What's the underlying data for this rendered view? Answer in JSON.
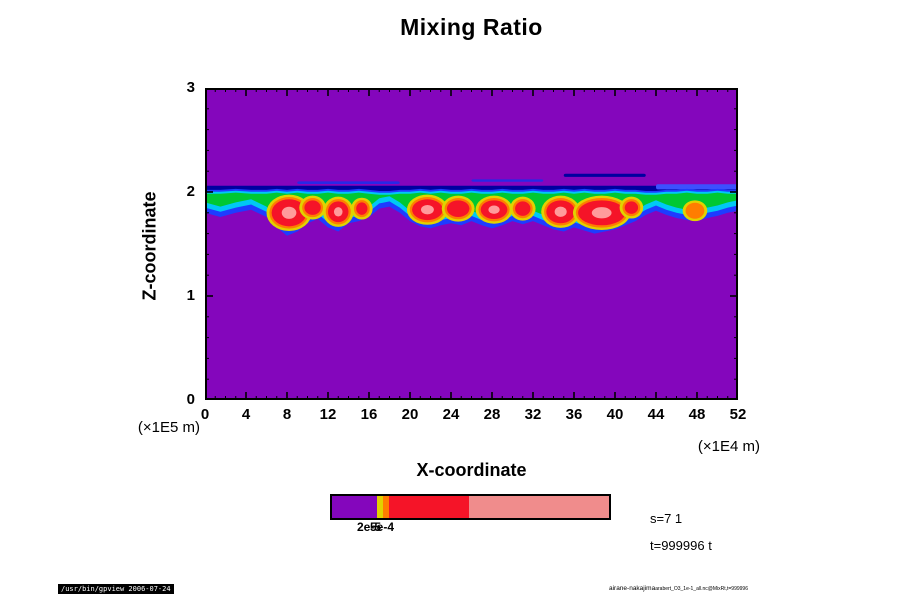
{
  "title": "Mixing Ratio",
  "chart_data": {
    "type": "heatmap",
    "title": "Mixing Ratio",
    "xlabel": "X-coordinate",
    "ylabel": "Z-coordinate",
    "x_unit": "(×1E4 m)",
    "y_unit": "(×1E5 m)",
    "xlim": [
      0,
      52
    ],
    "ylim": [
      0,
      3
    ],
    "x_ticks": [
      0,
      4,
      8,
      12,
      16,
      20,
      24,
      28,
      32,
      36,
      40,
      44,
      48,
      52
    ],
    "y_ticks": [
      0,
      1,
      2,
      3
    ],
    "description": "Filled-contour mixing-ratio cross-section: uniform low-value (purple) background with a thin cloud layer between z≈1.6 and z≈2.05 (×1E5 m) spanning all x, edged in blue/cyan/green with high-value yellow/orange/red cores and pale-pink maxima",
    "colors": {
      "background": "#8406BC",
      "navy": "#0000A0",
      "blue": "#1E3CFF",
      "cyan": "#00C8F5",
      "green": "#00C832",
      "yellow": "#E1D200",
      "orange": "#FF7D00",
      "red": "#F51428",
      "pink": "#FF9B9B"
    },
    "band_points": [
      [
        0,
        2.02,
        1.8
      ],
      [
        1.5,
        2.02,
        1.76
      ],
      [
        3,
        2.03,
        1.8
      ],
      [
        4.5,
        2.02,
        1.83
      ],
      [
        6,
        2.02,
        1.76
      ],
      [
        7,
        2.03,
        1.66
      ],
      [
        8,
        2.02,
        1.58
      ],
      [
        9,
        2.03,
        1.62
      ],
      [
        10,
        2.02,
        1.7
      ],
      [
        11,
        2.02,
        1.74
      ],
      [
        12,
        2.03,
        1.66
      ],
      [
        13,
        2.02,
        1.62
      ],
      [
        14,
        2.02,
        1.7
      ],
      [
        15,
        2.03,
        1.72
      ],
      [
        16,
        2.02,
        1.76
      ],
      [
        17,
        2.01,
        1.84
      ],
      [
        18,
        2.01,
        1.86
      ],
      [
        19,
        2.02,
        1.8
      ],
      [
        20,
        2.02,
        1.72
      ],
      [
        21,
        2.03,
        1.67
      ],
      [
        22,
        2.02,
        1.65
      ],
      [
        23,
        2.03,
        1.68
      ],
      [
        24,
        2.02,
        1.7
      ],
      [
        25,
        2.02,
        1.68
      ],
      [
        26,
        2.03,
        1.72
      ],
      [
        27,
        2.02,
        1.68
      ],
      [
        28,
        2.02,
        1.65
      ],
      [
        29,
        2.03,
        1.68
      ],
      [
        30,
        2.02,
        1.72
      ],
      [
        31,
        2.02,
        1.69
      ],
      [
        32,
        2.03,
        1.72
      ],
      [
        33,
        2.02,
        1.68
      ],
      [
        34,
        2.02,
        1.64
      ],
      [
        35,
        2.03,
        1.62
      ],
      [
        36,
        2.02,
        1.66
      ],
      [
        37,
        2.03,
        1.63
      ],
      [
        38,
        2.02,
        1.6
      ],
      [
        39,
        2.02,
        1.62
      ],
      [
        40,
        2.03,
        1.64
      ],
      [
        41,
        2.02,
        1.68
      ],
      [
        42,
        2.02,
        1.72
      ],
      [
        43,
        2.01,
        1.78
      ],
      [
        44,
        2.01,
        1.82
      ],
      [
        45,
        2.02,
        1.78
      ],
      [
        46,
        2.02,
        1.75
      ],
      [
        47,
        2.03,
        1.73
      ],
      [
        48,
        2.02,
        1.72
      ],
      [
        49,
        2.02,
        1.75
      ],
      [
        50,
        2.03,
        1.77
      ],
      [
        51,
        2.02,
        1.8
      ],
      [
        52,
        2.02,
        1.82
      ]
    ],
    "cores": [
      {
        "x": 8.2,
        "z": 1.8,
        "rx": 1.7,
        "rz": 0.13,
        "max": "pink"
      },
      {
        "x": 10.5,
        "z": 1.85,
        "rx": 0.8,
        "rz": 0.07,
        "max": "red"
      },
      {
        "x": 13.0,
        "z": 1.81,
        "rx": 1.0,
        "rz": 0.1,
        "max": "pink"
      },
      {
        "x": 15.3,
        "z": 1.84,
        "rx": 0.55,
        "rz": 0.06,
        "max": "red"
      },
      {
        "x": 21.7,
        "z": 1.83,
        "rx": 1.5,
        "rz": 0.1,
        "max": "pink"
      },
      {
        "x": 24.7,
        "z": 1.84,
        "rx": 1.1,
        "rz": 0.08,
        "max": "red"
      },
      {
        "x": 28.2,
        "z": 1.83,
        "rx": 1.3,
        "rz": 0.09,
        "max": "pink"
      },
      {
        "x": 31.0,
        "z": 1.84,
        "rx": 0.75,
        "rz": 0.07,
        "max": "red"
      },
      {
        "x": 34.7,
        "z": 1.81,
        "rx": 1.4,
        "rz": 0.11,
        "max": "pink"
      },
      {
        "x": 38.7,
        "z": 1.8,
        "rx": 2.3,
        "rz": 0.12,
        "max": "pink"
      },
      {
        "x": 41.6,
        "z": 1.85,
        "rx": 0.65,
        "rz": 0.06,
        "max": "red"
      },
      {
        "x": 47.8,
        "z": 1.82,
        "rx": 0.7,
        "rz": 0.055,
        "max": "orange"
      }
    ],
    "streaks": [
      {
        "x0": 9,
        "x1": 19,
        "z": 2.09,
        "h": 0.025,
        "color": "#2828E6"
      },
      {
        "x0": 26,
        "x1": 33,
        "z": 2.11,
        "h": 0.022,
        "color": "#2828E6"
      },
      {
        "x0": 35,
        "x1": 43,
        "z": 2.16,
        "h": 0.03,
        "color": "#0000A0"
      },
      {
        "x0": 44,
        "x1": 52,
        "z": 2.05,
        "h": 0.05,
        "color": "#3C50FF"
      }
    ],
    "colorbar": {
      "segments": [
        {
          "color": "#8406BC",
          "frac": 0.163
        },
        {
          "color": "#E1D200",
          "frac": 0.02
        },
        {
          "color": "#FF7D00",
          "frac": 0.022
        },
        {
          "color": "#F51428",
          "frac": 0.29
        },
        {
          "color": "#F08C8C",
          "frac": 0.505
        }
      ],
      "tick_labels": [
        "2e-5",
        "5e-4"
      ]
    }
  },
  "annotations": {
    "s_label": "s=7 1",
    "t_label": "t=999996 t"
  },
  "footer": {
    "left": "/usr/bin/gpview 2006-07-24",
    "right_main": "airane-nakajima",
    "right_sub": "arabert_O3_1e-1_all.nc@MixRt,t=999996"
  }
}
